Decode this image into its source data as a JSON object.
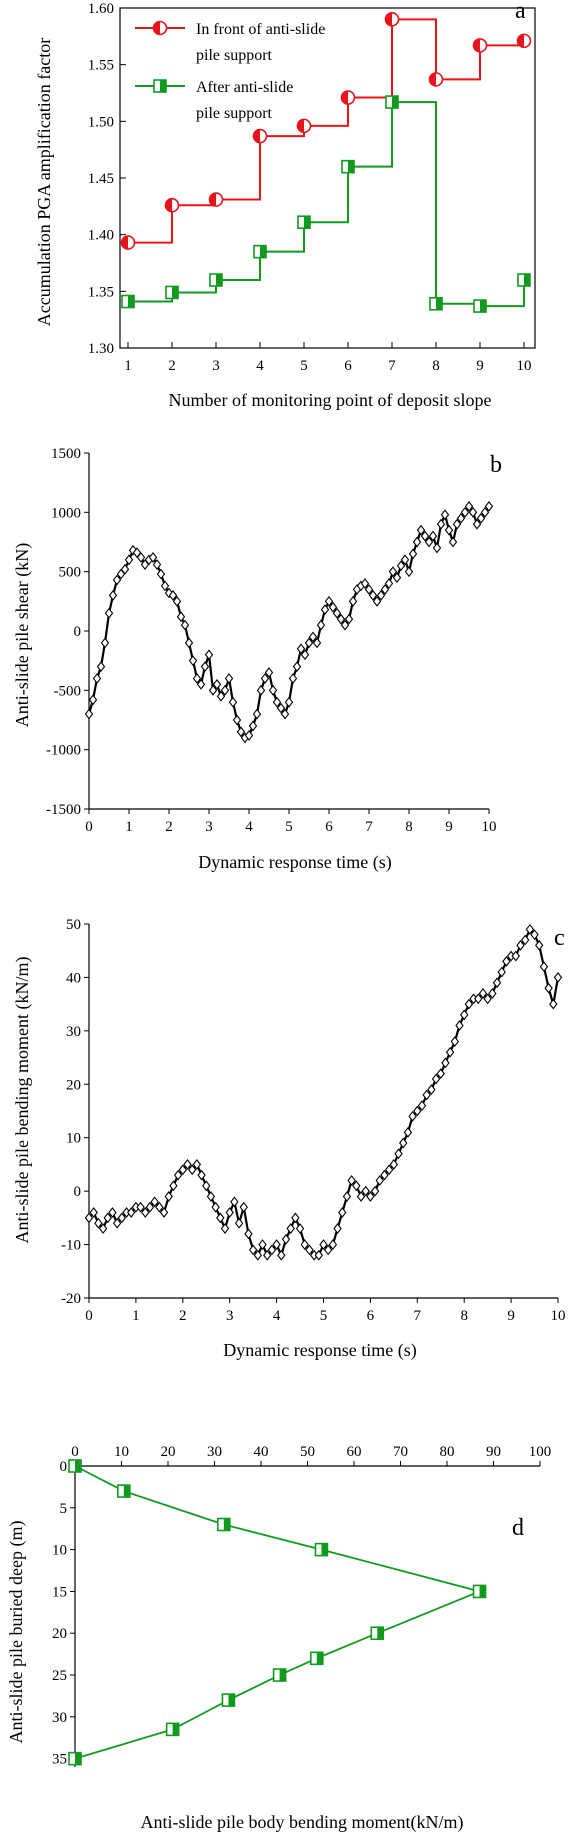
{
  "chart_data": [
    {
      "type": "line",
      "panel": "a",
      "step": true,
      "xlabel": "Number of monitoring point of deposit slope",
      "ylabel": "Accumulation PGA amplification factor",
      "xlim": [
        1,
        10
      ],
      "ylim": [
        1.3,
        1.6
      ],
      "xticks": [
        1,
        2,
        3,
        4,
        5,
        6,
        7,
        8,
        9,
        10
      ],
      "yticks": [
        1.3,
        1.35,
        1.4,
        1.45,
        1.5,
        1.55,
        1.6
      ],
      "x": [
        1,
        2,
        3,
        4,
        5,
        6,
        7,
        8,
        9,
        10
      ],
      "legend": [
        "In front of anti-slide",
        "pile support",
        "After anti-slide",
        "pile support"
      ],
      "legend_position": "top-left",
      "series": [
        {
          "values": [
            1.393,
            1.426,
            1.431,
            1.487,
            1.496,
            1.521,
            1.59,
            1.537,
            1.567,
            1.571
          ],
          "color": "#e8141b",
          "marker": "half-circle"
        },
        {
          "values": [
            1.341,
            1.349,
            1.36,
            1.385,
            1.411,
            1.46,
            1.517,
            1.339,
            1.337,
            1.36
          ],
          "color": "#119a1f",
          "marker": "half-square"
        }
      ]
    },
    {
      "type": "line",
      "panel": "b",
      "xlabel": "Dynamic response time (s)",
      "ylabel": "Anti-slide pile shear (kN)",
      "xlim": [
        0,
        10
      ],
      "ylim": [
        -1500,
        1500
      ],
      "xticks": [
        0,
        1,
        2,
        3,
        4,
        5,
        6,
        7,
        8,
        9,
        10
      ],
      "yticks": [
        -1500,
        -1000,
        -500,
        0,
        500,
        1000,
        1500
      ],
      "marker": "diamond",
      "color": "#000000",
      "series": [
        {
          "points": [
            [
              0,
              -700
            ],
            [
              0.1,
              -580
            ],
            [
              0.2,
              -400
            ],
            [
              0.3,
              -300
            ],
            [
              0.4,
              -100
            ],
            [
              0.5,
              150
            ],
            [
              0.6,
              300
            ],
            [
              0.7,
              430
            ],
            [
              0.8,
              480
            ],
            [
              0.9,
              520
            ],
            [
              1.0,
              600
            ],
            [
              1.1,
              680
            ],
            [
              1.2,
              660
            ],
            [
              1.3,
              620
            ],
            [
              1.4,
              560
            ],
            [
              1.5,
              600
            ],
            [
              1.6,
              620
            ],
            [
              1.7,
              560
            ],
            [
              1.8,
              480
            ],
            [
              1.9,
              380
            ],
            [
              2.0,
              320
            ],
            [
              2.1,
              300
            ],
            [
              2.2,
              250
            ],
            [
              2.3,
              120
            ],
            [
              2.4,
              50
            ],
            [
              2.5,
              -100
            ],
            [
              2.6,
              -250
            ],
            [
              2.7,
              -400
            ],
            [
              2.8,
              -450
            ],
            [
              2.9,
              -300
            ],
            [
              3.0,
              -200
            ],
            [
              3.1,
              -500
            ],
            [
              3.2,
              -450
            ],
            [
              3.3,
              -550
            ],
            [
              3.4,
              -500
            ],
            [
              3.5,
              -400
            ],
            [
              3.6,
              -600
            ],
            [
              3.7,
              -750
            ],
            [
              3.8,
              -850
            ],
            [
              3.9,
              -900
            ],
            [
              4.0,
              -880
            ],
            [
              4.1,
              -800
            ],
            [
              4.2,
              -700
            ],
            [
              4.3,
              -500
            ],
            [
              4.4,
              -400
            ],
            [
              4.5,
              -350
            ],
            [
              4.6,
              -500
            ],
            [
              4.7,
              -600
            ],
            [
              4.8,
              -650
            ],
            [
              4.9,
              -700
            ],
            [
              5.0,
              -600
            ],
            [
              5.1,
              -400
            ],
            [
              5.2,
              -300
            ],
            [
              5.3,
              -150
            ],
            [
              5.4,
              -200
            ],
            [
              5.5,
              -100
            ],
            [
              5.6,
              -50
            ],
            [
              5.7,
              -100
            ],
            [
              5.8,
              50
            ],
            [
              5.9,
              180
            ],
            [
              6.0,
              250
            ],
            [
              6.1,
              200
            ],
            [
              6.2,
              150
            ],
            [
              6.3,
              100
            ],
            [
              6.4,
              50
            ],
            [
              6.5,
              100
            ],
            [
              6.6,
              250
            ],
            [
              6.7,
              350
            ],
            [
              6.8,
              380
            ],
            [
              6.9,
              400
            ],
            [
              7.0,
              350
            ],
            [
              7.1,
              300
            ],
            [
              7.2,
              250
            ],
            [
              7.3,
              300
            ],
            [
              7.4,
              350
            ],
            [
              7.5,
              400
            ],
            [
              7.6,
              500
            ],
            [
              7.7,
              450
            ],
            [
              7.8,
              550
            ],
            [
              7.9,
              600
            ],
            [
              8.0,
              500
            ],
            [
              8.1,
              650
            ],
            [
              8.2,
              750
            ],
            [
              8.3,
              850
            ],
            [
              8.4,
              800
            ],
            [
              8.5,
              750
            ],
            [
              8.6,
              800
            ],
            [
              8.7,
              700
            ],
            [
              8.8,
              900
            ],
            [
              8.9,
              980
            ],
            [
              9.0,
              850
            ],
            [
              9.1,
              750
            ],
            [
              9.2,
              900
            ],
            [
              9.3,
              950
            ],
            [
              9.4,
              1000
            ],
            [
              9.5,
              1050
            ],
            [
              9.6,
              1000
            ],
            [
              9.7,
              900
            ],
            [
              9.8,
              950
            ],
            [
              9.9,
              1000
            ],
            [
              10.0,
              1050
            ]
          ]
        }
      ]
    },
    {
      "type": "line",
      "panel": "c",
      "xlabel": "Dynamic response time (s)",
      "ylabel": "Anti-slide pile bending moment (kN/m)",
      "xlim": [
        0,
        10
      ],
      "ylim": [
        -20,
        50
      ],
      "xticks": [
        0,
        1,
        2,
        3,
        4,
        5,
        6,
        7,
        8,
        9,
        10
      ],
      "yticks": [
        -20,
        -10,
        0,
        10,
        20,
        30,
        40,
        50
      ],
      "marker": "diamond",
      "color": "#000000",
      "series": [
        {
          "points": [
            [
              0,
              -5
            ],
            [
              0.1,
              -4
            ],
            [
              0.2,
              -6
            ],
            [
              0.3,
              -7
            ],
            [
              0.4,
              -5
            ],
            [
              0.5,
              -4
            ],
            [
              0.6,
              -6
            ],
            [
              0.7,
              -5
            ],
            [
              0.8,
              -4
            ],
            [
              0.9,
              -4
            ],
            [
              1.0,
              -3
            ],
            [
              1.1,
              -3
            ],
            [
              1.2,
              -4
            ],
            [
              1.3,
              -3
            ],
            [
              1.4,
              -2
            ],
            [
              1.5,
              -3
            ],
            [
              1.6,
              -4
            ],
            [
              1.7,
              -1
            ],
            [
              1.8,
              1
            ],
            [
              1.9,
              3
            ],
            [
              2.0,
              4
            ],
            [
              2.1,
              5
            ],
            [
              2.2,
              4
            ],
            [
              2.3,
              5
            ],
            [
              2.4,
              3
            ],
            [
              2.5,
              1
            ],
            [
              2.6,
              -1
            ],
            [
              2.7,
              -3
            ],
            [
              2.8,
              -5
            ],
            [
              2.9,
              -7
            ],
            [
              3.0,
              -4
            ],
            [
              3.1,
              -2
            ],
            [
              3.2,
              -6
            ],
            [
              3.3,
              -3
            ],
            [
              3.4,
              -8
            ],
            [
              3.5,
              -11
            ],
            [
              3.6,
              -12
            ],
            [
              3.7,
              -10
            ],
            [
              3.8,
              -12
            ],
            [
              3.9,
              -11
            ],
            [
              4.0,
              -10
            ],
            [
              4.1,
              -12
            ],
            [
              4.2,
              -9
            ],
            [
              4.3,
              -7
            ],
            [
              4.4,
              -5
            ],
            [
              4.5,
              -7
            ],
            [
              4.6,
              -10
            ],
            [
              4.7,
              -11
            ],
            [
              4.8,
              -12
            ],
            [
              4.9,
              -12
            ],
            [
              5.0,
              -10
            ],
            [
              5.1,
              -11
            ],
            [
              5.2,
              -10
            ],
            [
              5.3,
              -7
            ],
            [
              5.4,
              -4
            ],
            [
              5.5,
              -1
            ],
            [
              5.6,
              2
            ],
            [
              5.7,
              1
            ],
            [
              5.8,
              -1
            ],
            [
              5.9,
              0
            ],
            [
              6.0,
              -1
            ],
            [
              6.1,
              0
            ],
            [
              6.2,
              2
            ],
            [
              6.3,
              3
            ],
            [
              6.4,
              4
            ],
            [
              6.5,
              5
            ],
            [
              6.6,
              7
            ],
            [
              6.7,
              9
            ],
            [
              6.8,
              11
            ],
            [
              6.9,
              14
            ],
            [
              7.0,
              15
            ],
            [
              7.1,
              16
            ],
            [
              7.2,
              18
            ],
            [
              7.3,
              19
            ],
            [
              7.4,
              21
            ],
            [
              7.5,
              22
            ],
            [
              7.6,
              24
            ],
            [
              7.7,
              26
            ],
            [
              7.8,
              28
            ],
            [
              7.9,
              31
            ],
            [
              8.0,
              33
            ],
            [
              8.1,
              35
            ],
            [
              8.2,
              36
            ],
            [
              8.3,
              36
            ],
            [
              8.4,
              37
            ],
            [
              8.5,
              36
            ],
            [
              8.6,
              37
            ],
            [
              8.7,
              39
            ],
            [
              8.8,
              41
            ],
            [
              8.9,
              43
            ],
            [
              9.0,
              44
            ],
            [
              9.1,
              44
            ],
            [
              9.2,
              46
            ],
            [
              9.3,
              47
            ],
            [
              9.4,
              49
            ],
            [
              9.5,
              48
            ],
            [
              9.6,
              46
            ],
            [
              9.7,
              42
            ],
            [
              9.8,
              38
            ],
            [
              9.9,
              35
            ],
            [
              10.0,
              40
            ]
          ]
        }
      ]
    },
    {
      "type": "line",
      "panel": "d",
      "xlabel": "Anti-slide pile body bending moment(kN/m)",
      "ylabel": "Anti-slide pile buried deep (m)",
      "xlim": [
        0,
        100
      ],
      "ylim": [
        0,
        36
      ],
      "y_inverted": true,
      "x_axis_position": "top",
      "xticks": [
        0,
        10,
        20,
        30,
        40,
        50,
        60,
        70,
        80,
        90,
        100
      ],
      "yticks": [
        0,
        5,
        10,
        15,
        20,
        25,
        30,
        35
      ],
      "marker": "half-square",
      "color": "#119a1f",
      "series": [
        {
          "points": [
            [
              0,
              0
            ],
            [
              10.5,
              3
            ],
            [
              32,
              7
            ],
            [
              53,
              10
            ],
            [
              87,
              15
            ],
            [
              65,
              20
            ],
            [
              52,
              23
            ],
            [
              44,
              25
            ],
            [
              33,
              28
            ],
            [
              21,
              31.5
            ],
            [
              0,
              35
            ]
          ]
        }
      ]
    }
  ]
}
